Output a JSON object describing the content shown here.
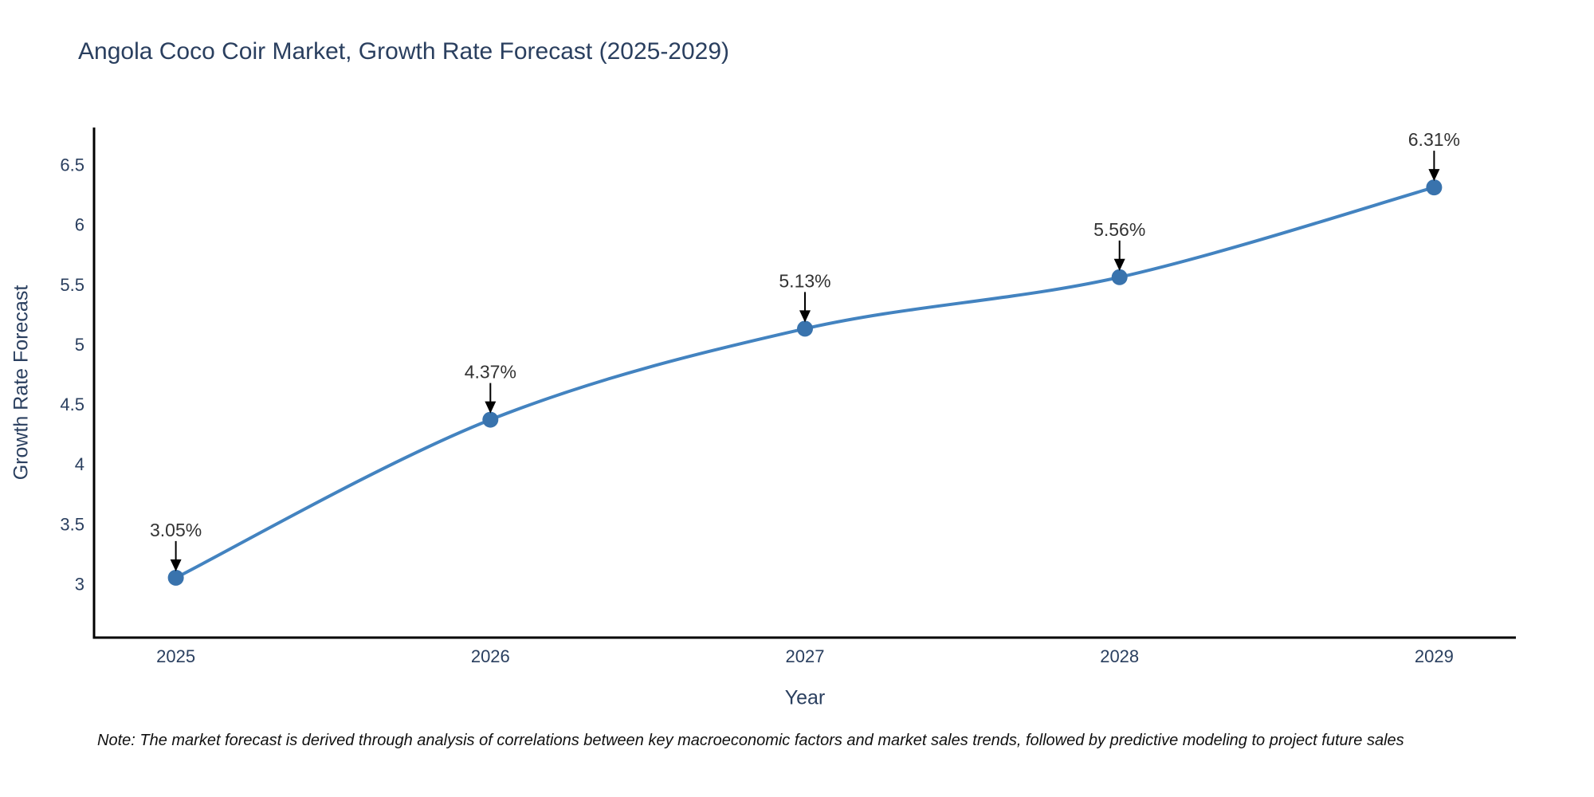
{
  "note": "Note: The market forecast is derived through analysis of correlations between key macroeconomic factors and market sales trends, followed by predictive modeling to project future sales",
  "colors": {
    "line": "#4383c0",
    "marker": "#3973ad",
    "axis": "#000000",
    "tick_text": "#2a3f5f",
    "annotation_text": "#333333",
    "annotation_arrow": "#000000",
    "background": "#ffffff"
  },
  "chart_data": {
    "type": "line",
    "title": "Angola Coco Coir Market, Growth Rate Forecast (2025-2029)",
    "xlabel": "Year",
    "ylabel": "Growth Rate Forecast",
    "x": [
      2025,
      2026,
      2027,
      2028,
      2029
    ],
    "y": [
      3.05,
      4.37,
      5.13,
      5.56,
      6.31
    ],
    "point_labels": [
      "3.05%",
      "4.37%",
      "5.13%",
      "5.56%",
      "6.31%"
    ],
    "xtick_values": [
      2025,
      2026,
      2027,
      2028,
      2029
    ],
    "xtick_labels": [
      "2025",
      "2026",
      "2027",
      "2028",
      "2029"
    ],
    "ytick_values": [
      3,
      3.5,
      4,
      4.5,
      5,
      5.5,
      6,
      6.5
    ],
    "ytick_labels": [
      "3",
      "3.5",
      "4",
      "4.5",
      "5",
      "5.5",
      "6",
      "6.5"
    ],
    "xlim": [
      2024.74,
      2029.26
    ],
    "ylim": [
      2.55,
      6.81
    ],
    "grid": false,
    "legend": false,
    "line_shape": "spline",
    "annotations": "arrow-down-to-point"
  }
}
